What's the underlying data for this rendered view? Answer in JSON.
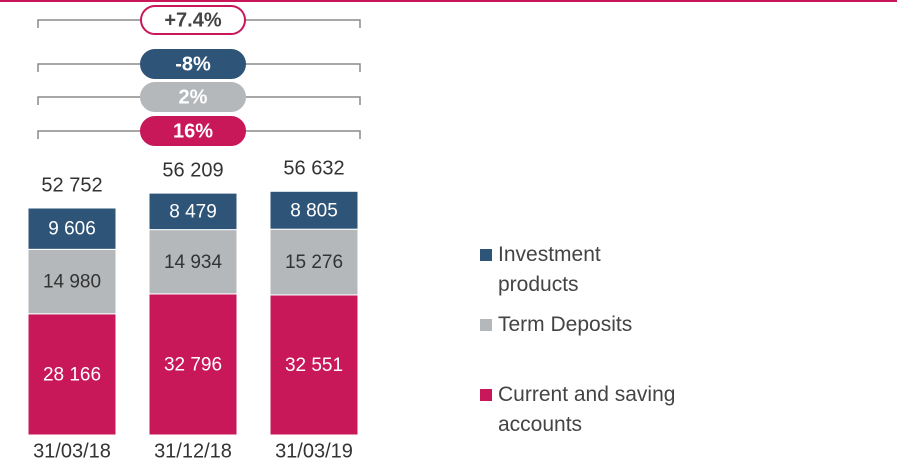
{
  "chart_data": {
    "type": "stacked_bar",
    "categories": [
      "31/03/18",
      "31/12/18",
      "31/03/19"
    ],
    "series": [
      {
        "name": "Current and saving accounts",
        "color": "#c8185a",
        "label_color": "#ffffff",
        "values": [
          28166,
          32796,
          32551
        ],
        "value_labels": [
          "28 166",
          "32 796",
          "32 551"
        ]
      },
      {
        "name": "Term Deposits",
        "color": "#b5b8bb",
        "label_color": "#333333",
        "values": [
          14980,
          14934,
          15276
        ],
        "value_labels": [
          "14 980",
          "14 934",
          "15 276"
        ]
      },
      {
        "name": "Investment products",
        "color": "#2e5478",
        "label_color": "#ffffff",
        "values": [
          9606,
          8479,
          8805
        ],
        "value_labels": [
          "9 606",
          "8 479",
          "8 805"
        ]
      }
    ],
    "totals": [
      52752,
      56209,
      56632
    ],
    "total_labels": [
      "52 752",
      "56 209",
      "56 632"
    ],
    "annotations": [
      {
        "text": "+7.4%",
        "color": "#c8185a",
        "outline": true
      },
      {
        "text": "-8%",
        "color": "#2e5478",
        "outline": false
      },
      {
        "text": "2%",
        "color": "#b5b8bb",
        "outline": false
      },
      {
        "text": "16%",
        "color": "#c8185a",
        "outline": false
      }
    ]
  }
}
